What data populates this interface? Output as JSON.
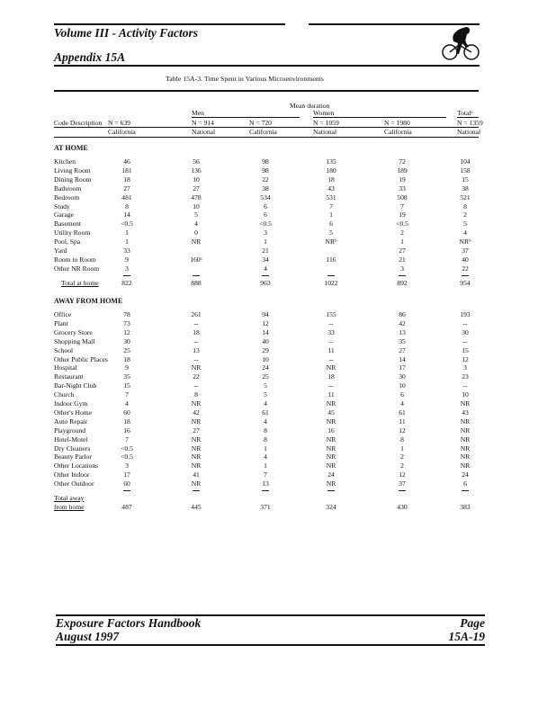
{
  "header": {
    "volume": "Volume III - Activity Factors",
    "appendix": "Appendix 15A",
    "logo_icon": "cyclist-icon"
  },
  "table": {
    "title": "Table 15A-3.  Time Spent in Various Microenvironments",
    "super_header": "Mean duration",
    "groups": [
      "Men",
      "Women",
      "Totalᵃ"
    ],
    "columns": [
      {
        "n": "N = 639",
        "region": "California"
      },
      {
        "n": "N = 914",
        "region": "National"
      },
      {
        "n": "N = 720",
        "region": "California"
      },
      {
        "n": "N = 1059",
        "region": "National"
      },
      {
        "n": "N = 1980",
        "region": "California"
      },
      {
        "n": "N = 1359",
        "region": "National"
      }
    ],
    "first_column_header": "Code Description",
    "sections": [
      {
        "title": "AT HOME",
        "rows": [
          [
            "Kitchen",
            "46",
            "56",
            "98",
            "135",
            "72",
            "104"
          ],
          [
            "Living Room",
            "181",
            "136",
            "98",
            "180",
            "189",
            "158"
          ],
          [
            "Dining Room",
            "18",
            "10",
            "22",
            "18",
            "19",
            "15"
          ],
          [
            "Bathroom",
            "27",
            "27",
            "38",
            "43",
            "33",
            "38"
          ],
          [
            "Bedroom",
            "481",
            "478",
            "534",
            "531",
            "508",
            "521"
          ],
          [
            "Study",
            "8",
            "10",
            "6",
            "7",
            "7",
            "8"
          ],
          [
            "Garage",
            "14",
            "5",
            "6",
            "1",
            "19",
            "2"
          ],
          [
            "Basement",
            "<0.5",
            "4",
            "<0.5",
            "6",
            "<0.5",
            "5"
          ],
          [
            "Utility Room",
            "1",
            "0",
            "3",
            "5",
            "2",
            "4"
          ],
          [
            "Pool, Spa",
            "1",
            "NR",
            "1",
            "NRᵇ",
            "1",
            "NRᵇ"
          ],
          [
            "Yard",
            "33",
            "",
            "21",
            "",
            "27",
            "37"
          ],
          [
            "Room to Room",
            "9",
            "160ᶜ",
            "34",
            "116",
            "21",
            "40"
          ],
          [
            "Other NR Room",
            "3",
            "",
            "4",
            "",
            "3",
            "22"
          ]
        ],
        "total_label": [
          "Total at home"
        ],
        "total": [
          "822",
          "888",
          "963",
          "1022",
          "892",
          "954"
        ]
      },
      {
        "title": "AWAY FROM HOME",
        "rows": [
          [
            "Office",
            "78",
            "261",
            "94",
            "155",
            "86",
            "193"
          ],
          [
            "Plant",
            "73",
            "--",
            "12",
            "--",
            "42",
            "--"
          ],
          [
            "Grocery Store",
            "12",
            "18",
            "14",
            "33",
            "13",
            "30"
          ],
          [
            "Shopping Mall",
            "30",
            "--",
            "40",
            "--",
            "35",
            "--"
          ],
          [
            "School",
            "25",
            "13",
            "29",
            "11",
            "27",
            "15"
          ],
          [
            "Other Public Places",
            "18",
            "--",
            "10",
            "--",
            "14",
            "12"
          ],
          [
            "Hospital",
            "9",
            "NR",
            "24",
            "NR",
            "17",
            "3"
          ],
          [
            "Restaurant",
            "35",
            "22",
            "25",
            "18",
            "30",
            "23"
          ],
          [
            "Bar-Night Club",
            "15",
            "--",
            "5",
            "--",
            "10",
            "--"
          ],
          [
            "Church",
            "7",
            "8",
            "5",
            "11",
            "6",
            "10"
          ],
          [
            "Indoor Gym",
            "4",
            "NR",
            "4",
            "NR",
            "4",
            "NR"
          ],
          [
            "Other's Home",
            "60",
            "42",
            "61",
            "45",
            "61",
            "43"
          ],
          [
            "Auto Repair",
            "18",
            "NR",
            "4",
            "NR",
            "11",
            "NR"
          ],
          [
            "Playground",
            "16",
            "27",
            "8",
            "16",
            "12",
            "NR"
          ],
          [
            "Hotel-Motel",
            "7",
            "NR",
            "8",
            "NR",
            "8",
            "NR"
          ],
          [
            "Dry Cleaners",
            "<0.5",
            "NR",
            "1",
            "NR",
            "1",
            "NR"
          ],
          [
            "Beauty Parlor",
            "<0.5",
            "NR",
            "4",
            "NR",
            "2",
            "NR"
          ],
          [
            "Other Locations",
            "3",
            "NR",
            "1",
            "NR",
            "2",
            "NR"
          ],
          [
            "Other Indoor",
            "17",
            "41",
            "7",
            "24",
            "12",
            "24"
          ],
          [
            "Other Outdoor",
            "60",
            "NR",
            "13",
            "NR",
            "37",
            "6"
          ]
        ],
        "total_label": [
          "Total away",
          "from home"
        ],
        "total": [
          "487",
          "445",
          "371",
          "324",
          "430",
          "383"
        ]
      }
    ]
  },
  "footer": {
    "book": "Exposure Factors Handbook",
    "date": "August 1997",
    "page_label": "Page",
    "page_number": "15A-19"
  }
}
